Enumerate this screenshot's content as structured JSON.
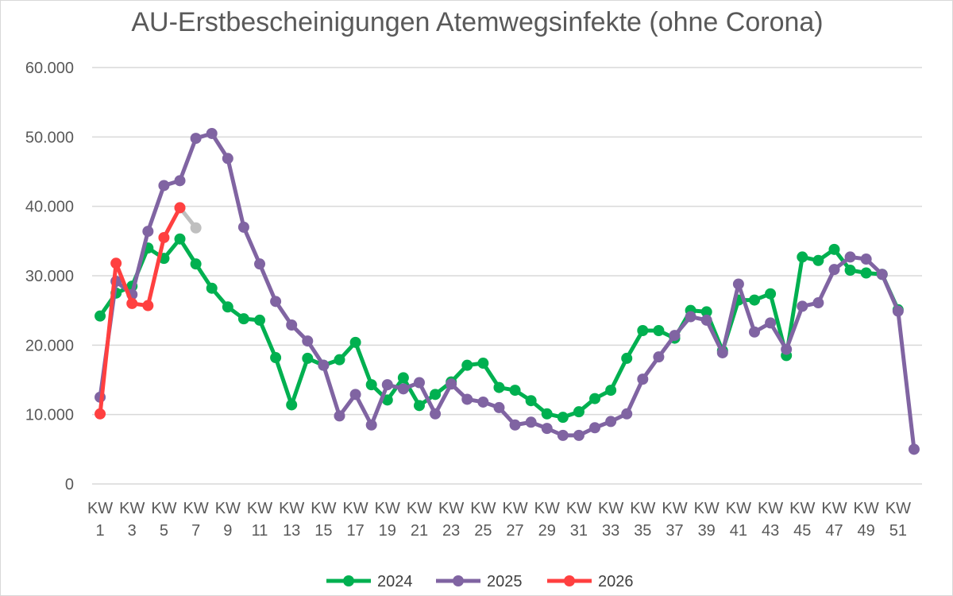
{
  "chart_data": {
    "type": "line",
    "title": "AU-Erstbescheinigungen Atemwegsinfekte (ohne Corona)",
    "xlabel": "",
    "ylabel": "",
    "ylim": [
      0,
      60000
    ],
    "y_ticks": [
      0,
      10000,
      20000,
      30000,
      40000,
      50000,
      60000
    ],
    "y_tick_labels": [
      "0",
      "10.000",
      "20.000",
      "30.000",
      "40.000",
      "50.000",
      "60.000"
    ],
    "x_tick_labels": [
      [
        "KW",
        "1"
      ],
      [
        "KW",
        "3"
      ],
      [
        "KW",
        "5"
      ],
      [
        "KW",
        "7"
      ],
      [
        "KW",
        "9"
      ],
      [
        "KW",
        "11"
      ],
      [
        "KW",
        "13"
      ],
      [
        "KW",
        "15"
      ],
      [
        "KW",
        "17"
      ],
      [
        "KW",
        "19"
      ],
      [
        "KW",
        "21"
      ],
      [
        "KW",
        "23"
      ],
      [
        "KW",
        "25"
      ],
      [
        "KW",
        "27"
      ],
      [
        "KW",
        "29"
      ],
      [
        "KW",
        "31"
      ],
      [
        "KW",
        "33"
      ],
      [
        "KW",
        "35"
      ],
      [
        "KW",
        "37"
      ],
      [
        "KW",
        "39"
      ],
      [
        "KW",
        "41"
      ],
      [
        "KW",
        "43"
      ],
      [
        "KW",
        "45"
      ],
      [
        "KW",
        "47"
      ],
      [
        "KW",
        "49"
      ],
      [
        "KW",
        "51"
      ]
    ],
    "x_tick_weeks": [
      1,
      3,
      5,
      7,
      9,
      11,
      13,
      15,
      17,
      19,
      21,
      23,
      25,
      27,
      29,
      31,
      33,
      35,
      37,
      39,
      41,
      43,
      45,
      47,
      49,
      51
    ],
    "series": [
      {
        "name": "2024",
        "color": "#00b050",
        "start_week": 1,
        "values": [
          24200,
          27500,
          28500,
          34000,
          32500,
          35300,
          31700,
          28200,
          25500,
          23800,
          23600,
          18200,
          11400,
          18100,
          17100,
          17900,
          20400,
          14300,
          12100,
          15300,
          11300,
          12900,
          14700,
          17100,
          17400,
          13900,
          13500,
          12000,
          10100,
          9600,
          10400,
          12300,
          13500,
          18100,
          22100,
          22100,
          21000,
          25000,
          24800,
          19200,
          26500,
          26500,
          27400,
          18500,
          32700,
          32200,
          33800,
          30800,
          30400,
          30200,
          25100
        ]
      },
      {
        "name": "2025",
        "color": "#8064a2",
        "start_week": 1,
        "values": [
          12500,
          29200,
          27300,
          36400,
          43000,
          43700,
          49800,
          50500,
          46900,
          37000,
          31700,
          26300,
          22900,
          20600,
          17100,
          9800,
          12900,
          8500,
          14300,
          13700,
          14600,
          10100,
          14400,
          12200,
          11800,
          11000,
          8500,
          8900,
          8000,
          7000,
          7000,
          8100,
          9000,
          10100,
          15100,
          18300,
          21400,
          24100,
          23600,
          18900,
          28800,
          21900,
          23200,
          19400,
          25600,
          26100,
          30900,
          32700,
          32400,
          30200,
          24900,
          5000
        ]
      },
      {
        "name": "2026",
        "color": "#ff4040",
        "start_week": 1,
        "values": [
          10100,
          31800,
          26000,
          25700,
          35500,
          39800
        ]
      },
      {
        "name": "",
        "color": "#bfbfbf",
        "start_week": 6,
        "values": [
          39800,
          36900
        ],
        "in_legend": false
      }
    ],
    "legend": [
      "2024",
      "2025",
      "2026"
    ],
    "legend_position": "bottom",
    "grid": true
  }
}
